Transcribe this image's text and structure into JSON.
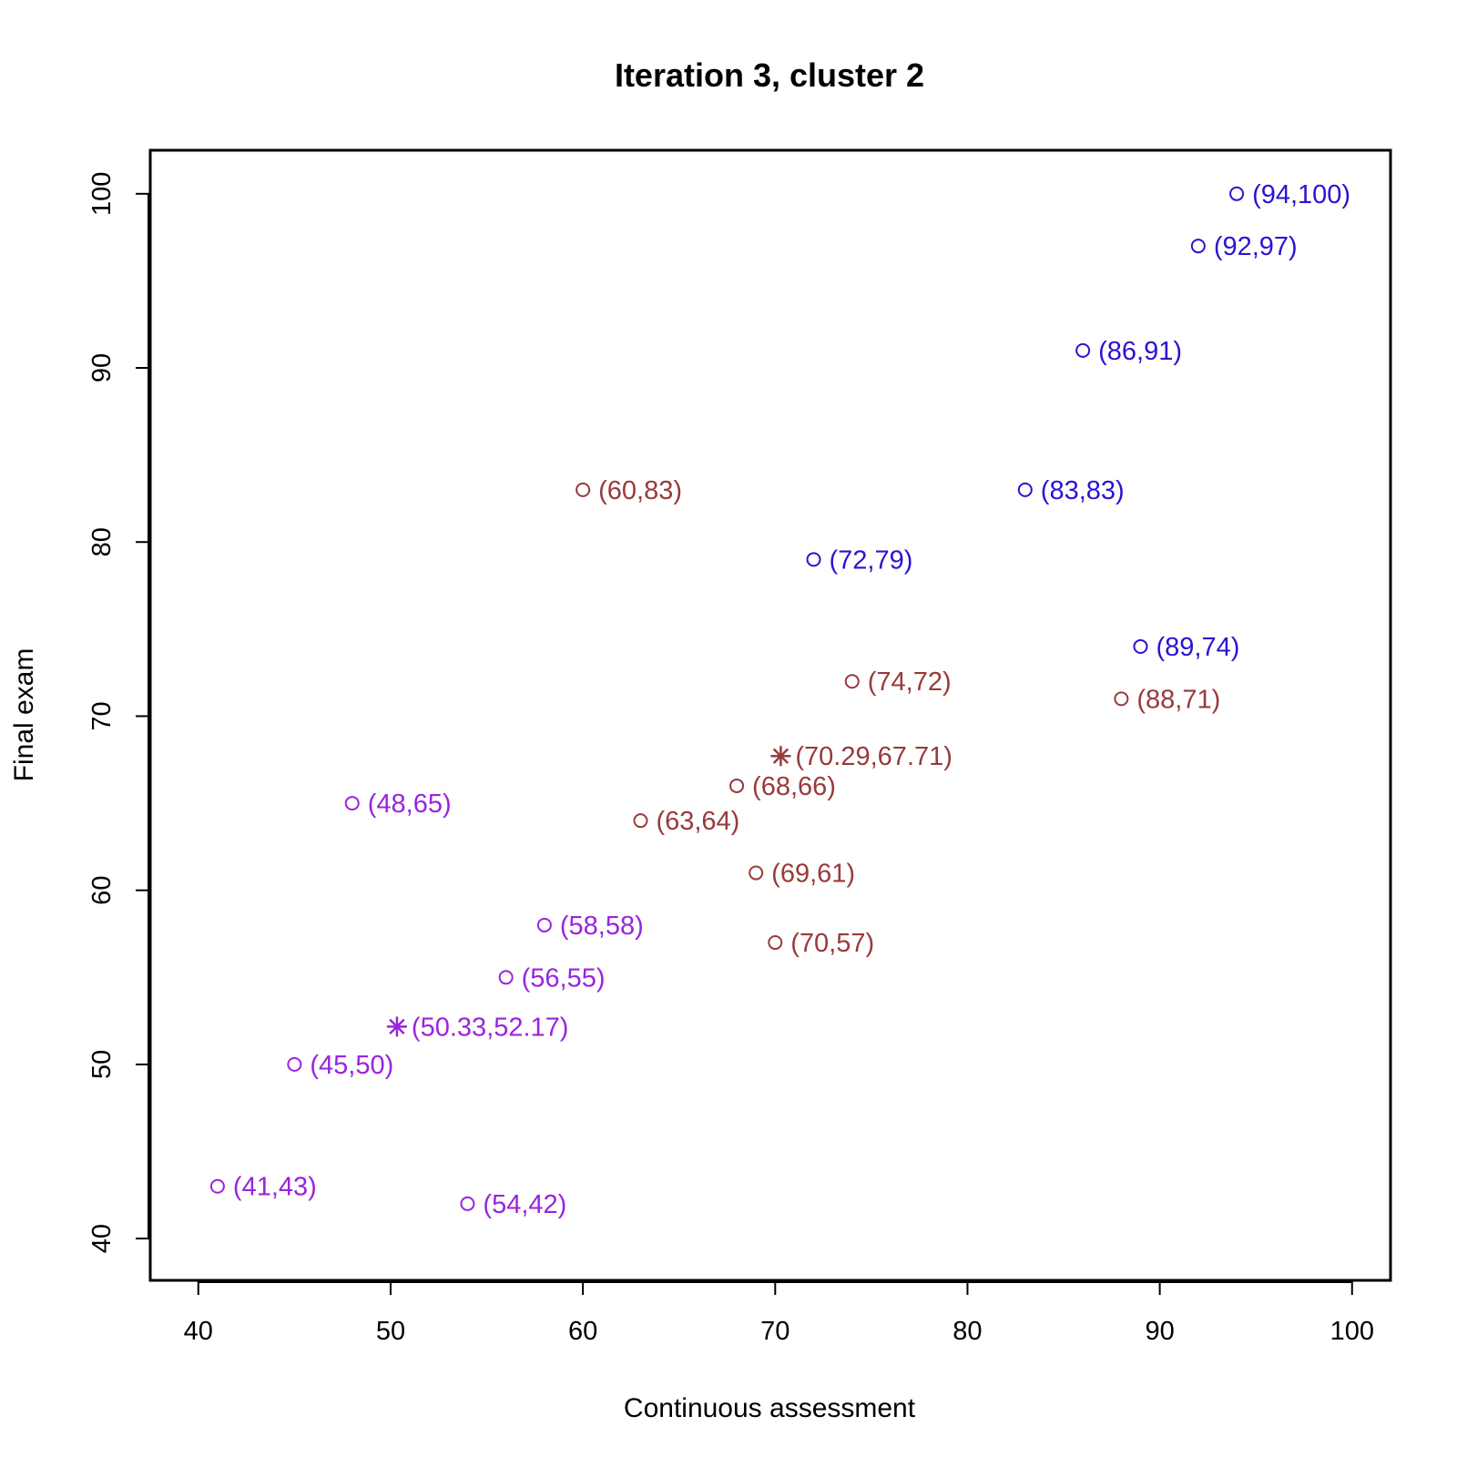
{
  "chart_data": {
    "type": "scatter",
    "title": "Iteration 3, cluster 2",
    "xlabel": "Continuous assessment",
    "ylabel": "Final exam",
    "xlim": [
      37.5,
      102
    ],
    "ylim": [
      37.6,
      102.5
    ],
    "xticks": [
      40,
      50,
      60,
      70,
      80,
      90,
      100
    ],
    "yticks": [
      40,
      50,
      60,
      70,
      80,
      90,
      100
    ],
    "grid": false,
    "colors": {
      "blue": "#2a14d2",
      "brown": "#983a3a",
      "purple": "#9a24dc"
    },
    "series": [
      {
        "color": "#2a14d2",
        "points": [
          {
            "x": 94,
            "y": 100,
            "label": "(94,100)"
          },
          {
            "x": 92,
            "y": 97,
            "label": "(92,97)"
          },
          {
            "x": 86,
            "y": 91,
            "label": "(86,91)"
          },
          {
            "x": 83,
            "y": 83,
            "label": "(83,83)"
          },
          {
            "x": 72,
            "y": 79,
            "label": "(72,79)"
          },
          {
            "x": 89,
            "y": 74,
            "label": "(89,74)"
          }
        ]
      },
      {
        "color": "#983a3a",
        "points": [
          {
            "x": 60,
            "y": 83,
            "label": "(60,83)"
          },
          {
            "x": 74,
            "y": 72,
            "label": "(74,72)"
          },
          {
            "x": 88,
            "y": 71,
            "label": "(88,71)"
          },
          {
            "x": 68,
            "y": 66,
            "label": "(68,66)"
          },
          {
            "x": 63,
            "y": 64,
            "label": "(63,64)"
          },
          {
            "x": 69,
            "y": 61,
            "label": "(69,61)"
          },
          {
            "x": 70,
            "y": 57,
            "label": "(70,57)"
          }
        ],
        "centroid": {
          "x": 70.29,
          "y": 67.71,
          "label": "(70.29,67.71)"
        }
      },
      {
        "color": "#9a24dc",
        "points": [
          {
            "x": 48,
            "y": 65,
            "label": "(48,65)"
          },
          {
            "x": 58,
            "y": 58,
            "label": "(58,58)"
          },
          {
            "x": 56,
            "y": 55,
            "label": "(56,55)"
          },
          {
            "x": 45,
            "y": 50,
            "label": "(45,50)"
          },
          {
            "x": 41,
            "y": 43,
            "label": "(41,43)"
          },
          {
            "x": 54,
            "y": 42,
            "label": "(54,42)"
          }
        ],
        "centroid": {
          "x": 50.33,
          "y": 52.17,
          "label": "(50.33,52.17)"
        }
      }
    ]
  }
}
